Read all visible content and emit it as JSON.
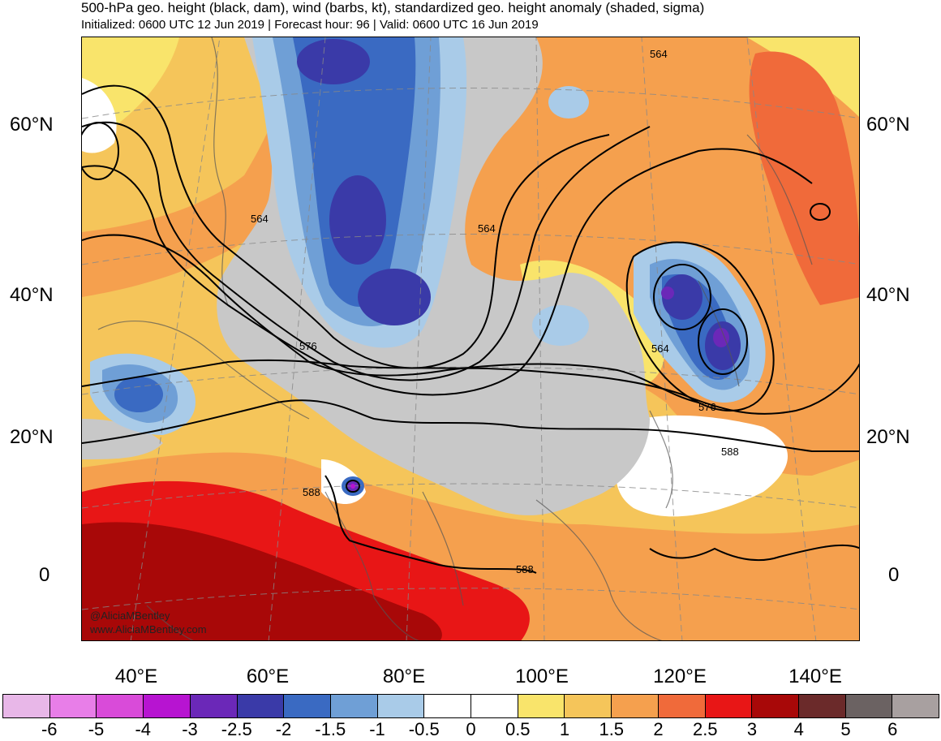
{
  "title": "500-hPa geo. height (black, dam), wind (barbs, kt), standardized geo. height anomaly (shaded, sigma)",
  "subtitle": "Initialized: 0600 UTC 12 Jun 2019 | Forecast hour: 96 | Valid: 0600 UTC 16 Jun 2019",
  "lat_labels": [
    "60°N",
    "40°N",
    "20°N",
    "0"
  ],
  "lon_labels": [
    "40°E",
    "60°E",
    "80°E",
    "100°E",
    "120°E",
    "140°E"
  ],
  "contour_labels": [
    "564",
    "564",
    "564",
    "564",
    "576",
    "576",
    "588",
    "588",
    "588"
  ],
  "credit": {
    "handle": "@AliciaMBentley",
    "website": "www.AliciaMBentley.com"
  },
  "colorbar": {
    "colors": [
      "#e8b7e8",
      "#e87ee8",
      "#d94bd9",
      "#b714d1",
      "#6b28b8",
      "#3a3aa8",
      "#3a6ac2",
      "#6f9fd6",
      "#a9cbe8",
      "#ffffff",
      "#ffffff",
      "#f9e46b",
      "#f5c55a",
      "#f5a04e",
      "#f06a3a",
      "#e81616",
      "#a80808",
      "#6b2a2a",
      "#6b6262",
      "#a8a0a0"
    ],
    "labels": [
      "-6",
      "-5",
      "-4",
      "-3",
      "-2.5",
      "-2",
      "-1.5",
      "-1",
      "-0.5",
      "0",
      "0.5",
      "1",
      "1.5",
      "2",
      "2.5",
      "3",
      "4",
      "5",
      "6"
    ]
  }
}
